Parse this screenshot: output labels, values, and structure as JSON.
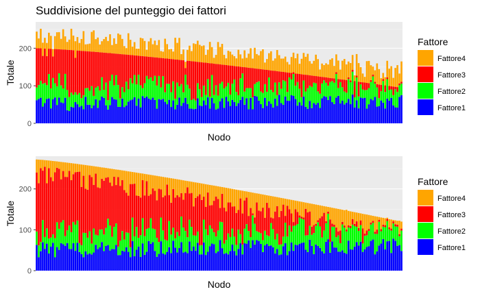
{
  "title": "Suddivisione del punteggio dei fattori",
  "colors": {
    "Fattore1": "#0000ff",
    "Fattore2": "#00ff00",
    "Fattore3": "#ff0000",
    "Fattore4": "#ffa500"
  },
  "chart_data": [
    {
      "type": "bar",
      "stacked": true,
      "sort": "descending by Fattore1+Fattore2+Fattore3",
      "n_bars": 180,
      "xlabel": "Nodo",
      "ylabel": "Totale",
      "ylim": [
        0,
        270
      ],
      "yticks": [
        0,
        100,
        200
      ],
      "grid": true,
      "legend": {
        "title": "Fattore",
        "position": "right",
        "entries": [
          "Fattore4",
          "Fattore3",
          "Fattore2",
          "Fattore1"
        ]
      },
      "series_profile": [
        {
          "name": "Fattore1",
          "approx_range": [
            20,
            80
          ]
        },
        {
          "name": "Fattore2",
          "approx_range": [
            10,
            70
          ]
        },
        {
          "name": "Fattore3",
          "approx_range": [
            40,
            150
          ]
        },
        {
          "name": "Fattore4",
          "approx_range": [
            10,
            60
          ]
        }
      ],
      "stack_123_total": {
        "start": 200,
        "end": 95
      },
      "stack_total_range": [
        130,
        270
      ]
    },
    {
      "type": "bar",
      "stacked": true,
      "sort": "descending by Totale",
      "n_bars": 180,
      "xlabel": "Nodo",
      "ylabel": "Totale",
      "ylim": [
        0,
        280
      ],
      "yticks": [
        0,
        100,
        200
      ],
      "grid": true,
      "legend": {
        "title": "Fattore",
        "position": "right",
        "entries": [
          "Fattore4",
          "Fattore3",
          "Fattore2",
          "Fattore1"
        ]
      },
      "series_profile": [
        {
          "name": "Fattore1",
          "approx_range": [
            15,
            85
          ]
        },
        {
          "name": "Fattore2",
          "approx_range": [
            10,
            70
          ]
        },
        {
          "name": "Fattore3",
          "approx_range": [
            30,
            150
          ]
        },
        {
          "name": "Fattore4",
          "approx_range": [
            5,
            80
          ]
        }
      ],
      "total": {
        "start": 272,
        "end": 120
      }
    }
  ]
}
